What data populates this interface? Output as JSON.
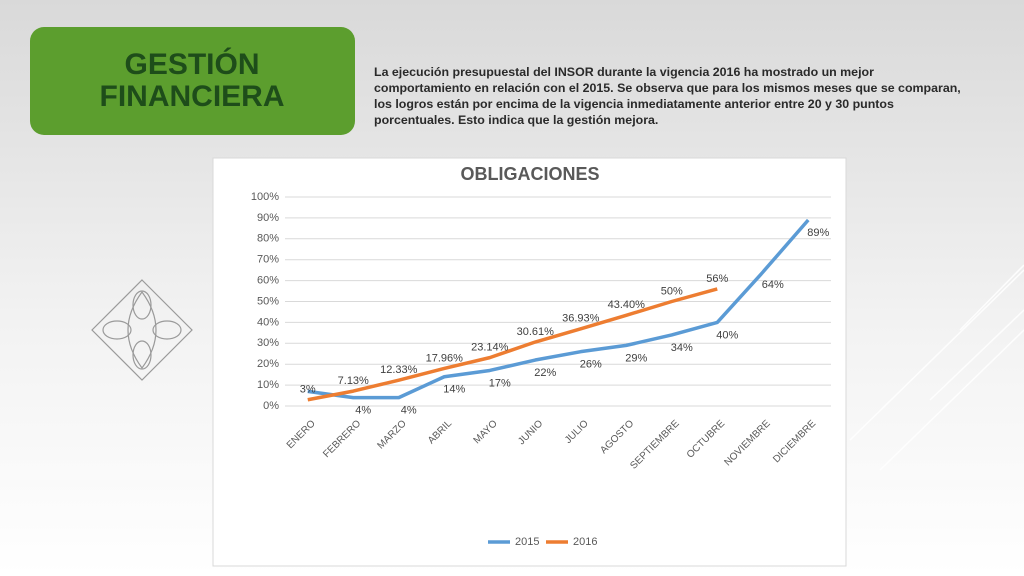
{
  "header": {
    "title": [
      "GESTIÓN",
      "FINANCIERA"
    ],
    "text": "La ejecución presupuestal del INSOR durante la vigencia 2016 ha mostrado un mejor comportamiento en relación con el 2015. Se observa que para los mismos meses que se comparan, los logros están por encima de la vigencia inmediatamente anterior entre 20 y 30 puntos porcentuales. Esto indica que la gestión mejora."
  },
  "chart_data": {
    "type": "line",
    "title": "OBLIGACIONES",
    "categories": [
      "ENERO",
      "FEBRERO",
      "MARZO",
      "ABRIL",
      "MAYO",
      "JUNIO",
      "JULIO",
      "AGOSTO",
      "SEPTIEMBRE",
      "OCTUBRE",
      "NOVIEMBRE",
      "DICIEMBRE"
    ],
    "series": [
      {
        "name": "2015",
        "color": "#5b9bd5",
        "values": [
          7,
          4,
          4,
          14,
          17,
          22,
          26,
          29,
          34,
          40,
          64,
          89
        ],
        "value_labels": [
          null,
          "4%",
          "4%",
          "14%",
          "17%",
          "22%",
          "26%",
          "29%",
          "34%",
          "40%",
          "64%",
          "89%"
        ]
      },
      {
        "name": "2016",
        "color": "#ed7d31",
        "values": [
          3,
          7.13,
          12.33,
          17.96,
          23.14,
          30.61,
          36.93,
          43.4,
          50,
          56,
          null,
          null
        ],
        "value_labels": [
          "3%",
          "7.13%",
          "12.33%",
          "17.96%",
          "23.14%",
          "30.61%",
          "36.93%",
          "43.40%",
          "50%",
          "56%",
          null,
          null
        ]
      }
    ],
    "ylim": [
      0,
      100
    ],
    "yticks": [
      {
        "value": 0,
        "label": "0%"
      },
      {
        "value": 10,
        "label": "10%"
      },
      {
        "value": 20,
        "label": "20%"
      },
      {
        "value": 30,
        "label": "30%"
      },
      {
        "value": 40,
        "label": "40%"
      },
      {
        "value": 50,
        "label": "50%"
      },
      {
        "value": 60,
        "label": "60%"
      },
      {
        "value": 70,
        "label": "70%"
      },
      {
        "value": 80,
        "label": "80%"
      },
      {
        "value": 90,
        "label": "90%"
      },
      {
        "value": 100,
        "label": "100%"
      }
    ],
    "grid": true,
    "legend": "bottom"
  }
}
